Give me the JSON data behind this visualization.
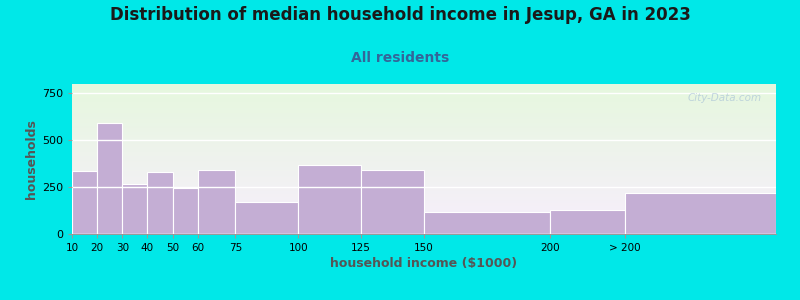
{
  "title": "Distribution of median household income in Jesup, GA in 2023",
  "subtitle": "All residents",
  "xlabel": "household income ($1000)",
  "ylabel": "households",
  "title_fontsize": 12,
  "subtitle_fontsize": 10,
  "axis_label_fontsize": 9,
  "bar_color": "#c4aed4",
  "bar_edge_color": "#c4aed4",
  "background_color": "#00e8e8",
  "yticks": [
    0,
    250,
    500,
    750
  ],
  "ylim": [
    0,
    800
  ],
  "categories": [
    "10",
    "20",
    "30",
    "40",
    "50",
    "60",
    "75",
    "100",
    "125",
    "150",
    "200",
    "> 200"
  ],
  "values": [
    335,
    590,
    265,
    330,
    245,
    340,
    170,
    370,
    340,
    115,
    130,
    220
  ],
  "x_left_edges": [
    10,
    20,
    30,
    40,
    50,
    60,
    75,
    100,
    125,
    150,
    200,
    230
  ],
  "x_widths": [
    10,
    10,
    10,
    10,
    10,
    15,
    25,
    25,
    25,
    50,
    30,
    60
  ],
  "watermark": "City-Data.com",
  "tick_positions": [
    10,
    20,
    30,
    40,
    50,
    60,
    75,
    100,
    125,
    150,
    200,
    230
  ],
  "xlim_left": 10,
  "xlim_right": 290
}
